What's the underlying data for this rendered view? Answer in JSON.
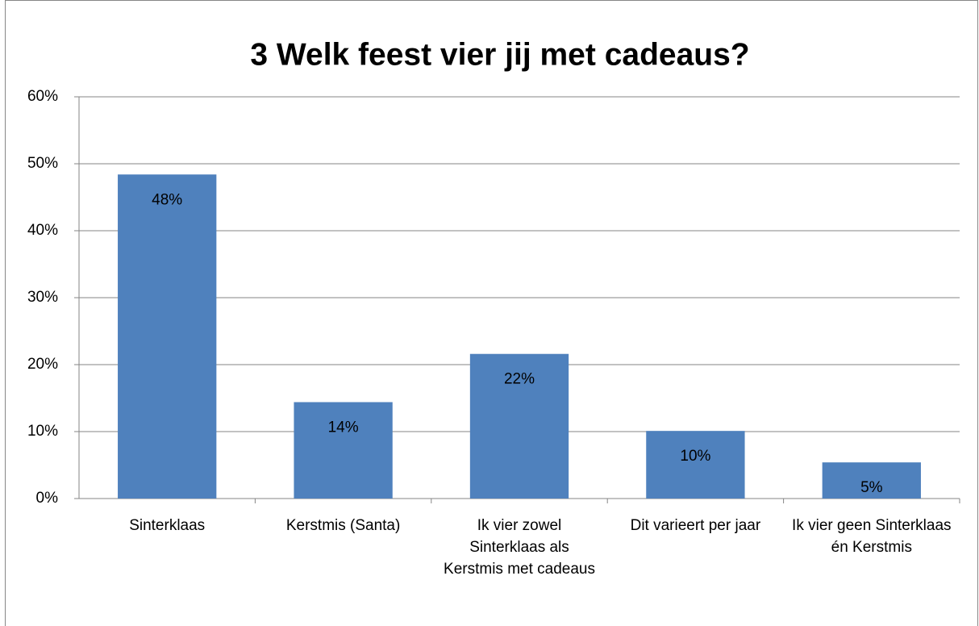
{
  "chart_data": {
    "type": "bar",
    "title": "3 Welk feest vier jij met cadeaus?",
    "categories": [
      "Sinterklaas",
      "Kerstmis (Santa)",
      "Ik vier zowel Sinterklaas als Kerstmis met cadeaus",
      "Dit varieert per jaar",
      "Ik vier geen Sinterklaas én Kerstmis"
    ],
    "values": [
      48.4,
      14.4,
      21.6,
      10.1,
      5.4
    ],
    "value_labels": [
      "48%",
      "14%",
      "22%",
      "10%",
      "5%"
    ],
    "color": "#4f81bd",
    "ylim": [
      0,
      60
    ],
    "yticks": [
      {
        "value": 0,
        "label": "0%"
      },
      {
        "value": 10,
        "label": "10%"
      },
      {
        "value": 20,
        "label": "20%"
      },
      {
        "value": 30,
        "label": "30%"
      },
      {
        "value": 40,
        "label": "40%"
      },
      {
        "value": 50,
        "label": "50%"
      },
      {
        "value": 60,
        "label": "60%"
      }
    ],
    "grid": true
  }
}
